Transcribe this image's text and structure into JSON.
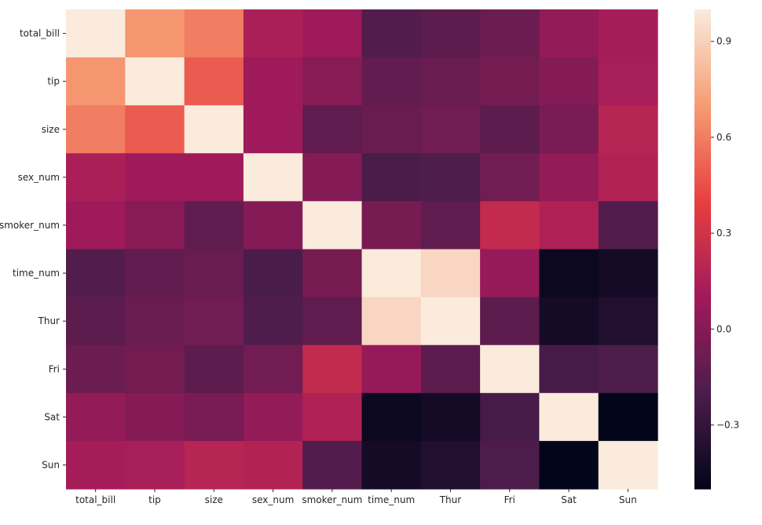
{
  "chart_data": {
    "type": "heatmap",
    "title": "",
    "xlabel": "",
    "ylabel": "",
    "x_categories": [
      "total_bill",
      "tip",
      "size",
      "sex_num",
      "smoker_num",
      "time_num",
      "Thur",
      "Fri",
      "Sat",
      "Sun"
    ],
    "y_categories": [
      "total_bill",
      "tip",
      "size",
      "sex_num",
      "smoker_num",
      "time_num",
      "Thur",
      "Fri",
      "Sat",
      "Sun"
    ],
    "values": [
      [
        1.0,
        0.68,
        0.6,
        0.14,
        0.09,
        -0.18,
        -0.14,
        -0.09,
        0.05,
        0.12
      ],
      [
        0.68,
        1.0,
        0.49,
        0.09,
        0.01,
        -0.12,
        -0.1,
        -0.06,
        -0.0,
        0.13
      ],
      [
        0.6,
        0.49,
        1.0,
        0.09,
        -0.13,
        -0.1,
        -0.07,
        -0.14,
        -0.04,
        0.19
      ],
      [
        0.14,
        0.09,
        0.09,
        1.0,
        0.0,
        -0.21,
        -0.19,
        -0.07,
        0.05,
        0.17
      ],
      [
        0.09,
        0.01,
        -0.13,
        0.0,
        1.0,
        -0.05,
        -0.13,
        0.24,
        0.16,
        -0.18
      ],
      [
        -0.18,
        -0.12,
        -0.1,
        -0.21,
        -0.05,
        1.0,
        0.92,
        0.06,
        -0.46,
        -0.42
      ],
      [
        -0.14,
        -0.1,
        -0.07,
        -0.19,
        -0.13,
        0.92,
        1.0,
        -0.14,
        -0.42,
        -0.38
      ],
      [
        -0.09,
        -0.06,
        -0.14,
        -0.07,
        0.24,
        0.06,
        -0.14,
        1.0,
        -0.22,
        -0.2
      ],
      [
        0.05,
        -0.0,
        -0.04,
        0.05,
        0.16,
        -0.46,
        -0.42,
        -0.22,
        1.0,
        -0.5
      ],
      [
        0.12,
        0.13,
        0.19,
        0.17,
        -0.18,
        -0.42,
        -0.38,
        -0.2,
        -0.5,
        1.0
      ]
    ],
    "vmin": -0.5,
    "vmax": 1.0,
    "colorbar_ticks": [
      0.9,
      0.6,
      0.3,
      0.0,
      -0.3
    ],
    "colorbar_tick_labels": [
      "0.9",
      "0.6",
      "0.3",
      "0.0",
      "−0.3"
    ],
    "colormap": "rocket",
    "colormap_stops": [
      "#03051a",
      "#4c1d4b",
      "#a11a5b",
      "#e83f3f",
      "#f69c73",
      "#faebdd"
    ],
    "grid": false,
    "colorbar_placement": "right"
  }
}
